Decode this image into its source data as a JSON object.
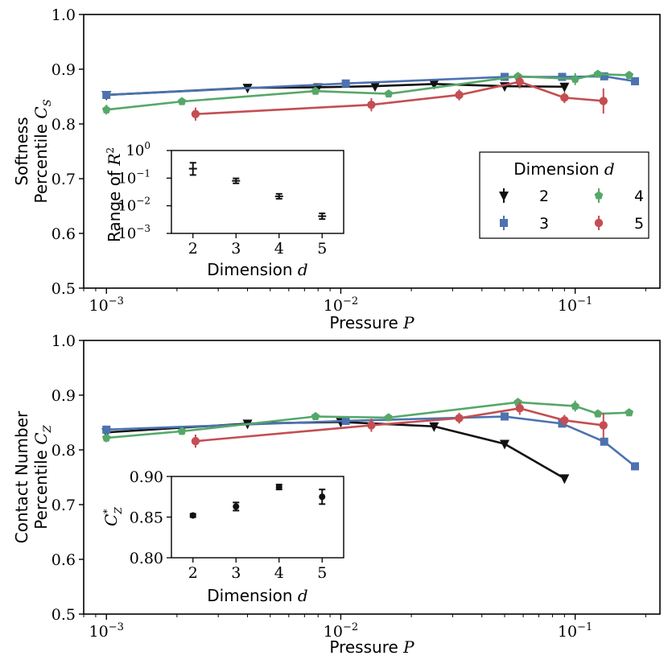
{
  "colors": {
    "d2": "#111111",
    "d3": "#4c72b0",
    "d4": "#55a868",
    "d5": "#c44e52",
    "axis": "#000000"
  },
  "labels": {
    "legend_title": "Dimension",
    "legend_title_var": "d",
    "xlabel_word": "Pressure",
    "xlabel_var": "P",
    "top_ylabel_line1": "Softness",
    "top_ylabel_line2": "Percentile",
    "top_ylabel_var": "C",
    "top_ylabel_sub": "S",
    "bottom_ylabel_line1": "Contact Number",
    "bottom_ylabel_line2": "Percentile",
    "bottom_ylabel_var": "C",
    "bottom_ylabel_sub": "Z",
    "inset_xlabel_word": "Dimension",
    "inset_xlabel_var": "d",
    "inset1_ylabel": "Range of",
    "inset1_ylabel_var": "R",
    "inset1_ylabel_sup": "2",
    "inset2_ylabel_var": "C",
    "inset2_ylabel_sup": "*",
    "inset2_ylabel_sub": "Z"
  },
  "chart_data": [
    {
      "id": "top",
      "type": "line",
      "xscale": "log",
      "xlim": [
        0.0008,
        0.23
      ],
      "ylim": [
        0.5,
        1.0
      ],
      "yticks": [
        "0.5",
        "0.6",
        "0.7",
        "0.8",
        "0.9",
        "1.0"
      ],
      "xtick_exponents": [
        "-3",
        "-2",
        "-1"
      ],
      "series": [
        {
          "name": "2",
          "marker": "tri_down",
          "x": [
            0.001,
            0.004,
            0.008,
            0.014,
            0.025,
            0.05,
            0.09
          ],
          "y": [
            0.853,
            0.866,
            0.867,
            0.869,
            0.873,
            0.869,
            0.868
          ],
          "err": [
            0.004,
            0.003,
            0.003,
            0.003,
            0.003,
            0.004,
            0.006
          ]
        },
        {
          "name": "3",
          "marker": "square",
          "x": [
            0.001,
            0.0105,
            0.05,
            0.088,
            0.133,
            0.18
          ],
          "y": [
            0.853,
            0.874,
            0.886,
            0.886,
            0.887,
            0.878
          ],
          "err": [
            0.004,
            0.004,
            0.004,
            0.004,
            0.006,
            0.005
          ]
        },
        {
          "name": "4",
          "marker": "pentagon",
          "x": [
            0.001,
            0.0021,
            0.0078,
            0.016,
            0.057,
            0.1,
            0.125,
            0.17
          ],
          "y": [
            0.826,
            0.841,
            0.86,
            0.855,
            0.887,
            0.882,
            0.891,
            0.889
          ],
          "err": [
            0.009,
            0.005,
            0.006,
            0.005,
            0.006,
            0.011,
            0.005,
            0.004
          ]
        },
        {
          "name": "5",
          "marker": "circle",
          "x": [
            0.0024,
            0.0135,
            0.032,
            0.058,
            0.09,
            0.132
          ],
          "y": [
            0.818,
            0.835,
            0.853,
            0.877,
            0.848,
            0.842
          ],
          "err": [
            0.012,
            0.012,
            0.01,
            0.012,
            0.01,
            0.023
          ]
        }
      ]
    },
    {
      "id": "inset1",
      "type": "scatter",
      "yscale": "log",
      "categories": [
        "2",
        "3",
        "4",
        "5"
      ],
      "values": [
        0.22,
        0.08,
        0.022,
        0.0042
      ],
      "err_low": [
        0.13,
        0.065,
        0.018,
        0.0033
      ],
      "err_high": [
        0.36,
        0.098,
        0.027,
        0.0053
      ],
      "ylim": [
        0.001,
        1
      ],
      "ytick_exponents": [
        "0",
        "-1",
        "-2",
        "-3"
      ],
      "xlabel": "Dimension d",
      "ylabel": "Range of R^2"
    },
    {
      "id": "bottom",
      "type": "line",
      "xscale": "log",
      "xlim": [
        0.0008,
        0.23
      ],
      "ylim": [
        0.5,
        1.0
      ],
      "yticks": [
        "0.5",
        "0.6",
        "0.7",
        "0.8",
        "0.9",
        "1.0"
      ],
      "xtick_exponents": [
        "-3",
        "-2",
        "-1"
      ],
      "series": [
        {
          "name": "2",
          "marker": "tri_down",
          "x": [
            0.001,
            0.004,
            0.01,
            0.025,
            0.05,
            0.09
          ],
          "y": [
            0.832,
            0.848,
            0.851,
            0.843,
            0.811,
            0.748
          ],
          "err": [
            0.004,
            0.003,
            0.004,
            0.003,
            0.004,
            0.005
          ]
        },
        {
          "name": "3",
          "marker": "square",
          "x": [
            0.001,
            0.0105,
            0.05,
            0.088,
            0.133,
            0.18
          ],
          "y": [
            0.837,
            0.853,
            0.861,
            0.848,
            0.815,
            0.77
          ],
          "err": [
            0.004,
            0.004,
            0.004,
            0.004,
            0.006,
            0.004
          ]
        },
        {
          "name": "4",
          "marker": "pentagon",
          "x": [
            0.001,
            0.0021,
            0.0078,
            0.016,
            0.057,
            0.1,
            0.125,
            0.17
          ],
          "y": [
            0.822,
            0.834,
            0.861,
            0.859,
            0.887,
            0.88,
            0.866,
            0.868
          ],
          "err": [
            0.008,
            0.005,
            0.006,
            0.005,
            0.006,
            0.01,
            0.005,
            0.004
          ]
        },
        {
          "name": "5",
          "marker": "circle",
          "x": [
            0.0024,
            0.0135,
            0.032,
            0.058,
            0.09,
            0.132
          ],
          "y": [
            0.816,
            0.845,
            0.858,
            0.876,
            0.854,
            0.845
          ],
          "err": [
            0.012,
            0.012,
            0.01,
            0.012,
            0.01,
            0.023
          ]
        }
      ]
    },
    {
      "id": "inset2",
      "type": "scatter",
      "categories": [
        "2",
        "3",
        "4",
        "5"
      ],
      "values": [
        0.852,
        0.863,
        0.887,
        0.875
      ],
      "err": [
        0.002,
        0.005,
        0.003,
        0.009
      ],
      "ylim": [
        0.8,
        0.9
      ],
      "yticks": [
        "0.80",
        "0.85",
        "0.90"
      ],
      "xlabel": "Dimension d",
      "ylabel": "C*_Z"
    }
  ]
}
